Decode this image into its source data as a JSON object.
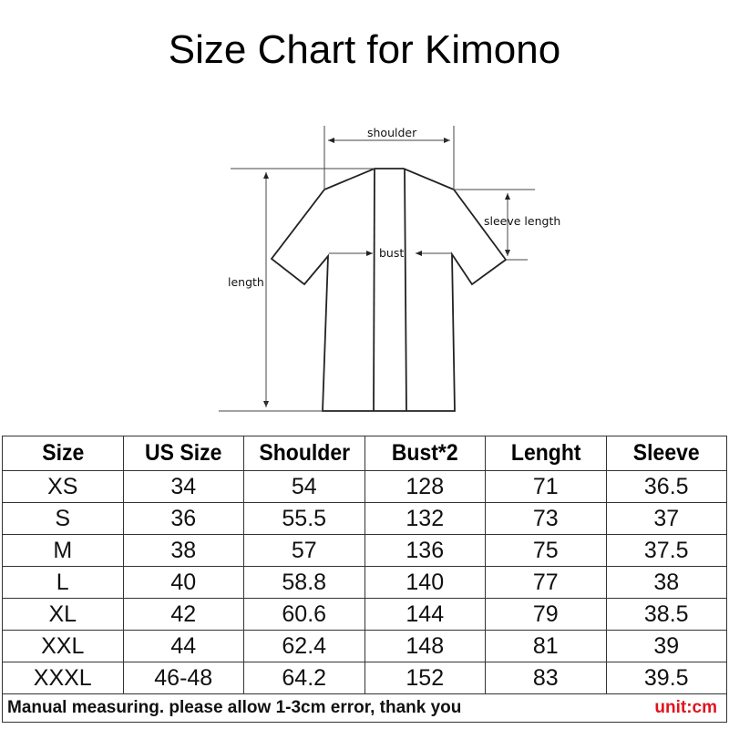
{
  "title": "Size Chart for Kimono",
  "diagram": {
    "labels": {
      "shoulder": "shoulder",
      "sleeve": "sleeve length",
      "bust": "bust",
      "length": "length"
    }
  },
  "table": {
    "headers": [
      "Size",
      "US Size",
      "Shoulder",
      "Bust*2",
      "Lenght",
      "Sleeve"
    ],
    "rows": [
      [
        "XS",
        "34",
        "54",
        "128",
        "71",
        "36.5"
      ],
      [
        "S",
        "36",
        "55.5",
        "132",
        "73",
        "37"
      ],
      [
        "M",
        "38",
        "57",
        "136",
        "75",
        "37.5"
      ],
      [
        "L",
        "40",
        "58.8",
        "140",
        "77",
        "38"
      ],
      [
        "XL",
        "42",
        "60.6",
        "144",
        "79",
        "38.5"
      ],
      [
        "XXL",
        "44",
        "62.4",
        "148",
        "81",
        "39"
      ],
      [
        "XXXL",
        "46-48",
        "64.2",
        "152",
        "83",
        "39.5"
      ]
    ],
    "note": "Manual measuring. please allow 1-3cm error, thank you",
    "unit": "unit:cm",
    "unit_color": "#e0141e"
  }
}
